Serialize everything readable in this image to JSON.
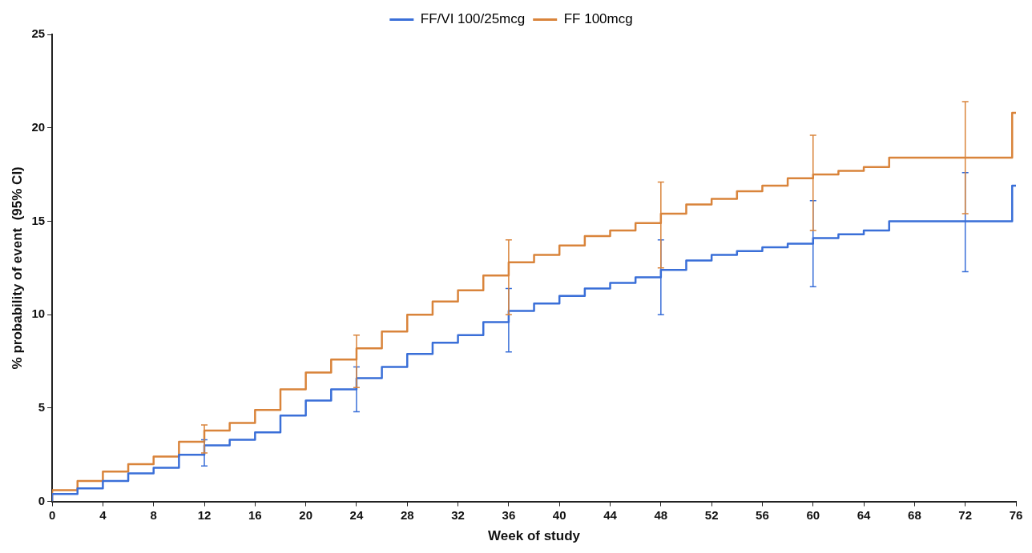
{
  "chart_data": {
    "type": "step",
    "xlabel": "Week of study",
    "ylabel": "% probability of event  (95% CI)",
    "legend": "top",
    "grid": false,
    "marker": "none",
    "xlim": [
      0,
      76
    ],
    "xticks": [
      0,
      4,
      8,
      12,
      16,
      20,
      24,
      28,
      32,
      36,
      40,
      44,
      48,
      52,
      56,
      60,
      64,
      68,
      72,
      76
    ],
    "ylim": [
      0,
      25
    ],
    "yticks": [
      0,
      5,
      10,
      15,
      20,
      25
    ],
    "series": [
      {
        "name": "FF/VI 100/25mcg",
        "color": "#3a6fd8",
        "x": [
          0,
          2,
          4,
          6,
          8,
          10,
          12,
          14,
          16,
          18,
          20,
          22,
          24,
          26,
          28,
          30,
          32,
          34,
          36,
          38,
          40,
          42,
          44,
          46,
          48,
          50,
          52,
          54,
          56,
          58,
          60,
          62,
          64,
          66,
          68,
          72,
          75.7,
          76
        ],
        "values": [
          0,
          0.4,
          0.7,
          1.1,
          1.5,
          1.8,
          2.5,
          3.0,
          3.3,
          3.7,
          4.6,
          5.4,
          6.0,
          6.6,
          7.2,
          7.9,
          8.5,
          8.9,
          9.6,
          10.2,
          10.6,
          11.0,
          11.4,
          11.7,
          12.0,
          12.4,
          12.9,
          13.2,
          13.4,
          13.6,
          13.8,
          14.1,
          14.3,
          14.5,
          15.0,
          15.0,
          15.0,
          16.9
        ],
        "errors": [
          null,
          null,
          null,
          null,
          null,
          null,
          [
            1.9,
            3.3
          ],
          null,
          null,
          null,
          null,
          null,
          [
            4.8,
            7.2
          ],
          null,
          null,
          null,
          null,
          null,
          [
            8.0,
            11.4
          ],
          null,
          null,
          null,
          null,
          null,
          [
            10.0,
            14.0
          ],
          null,
          null,
          null,
          null,
          null,
          [
            11.5,
            16.1
          ],
          null,
          null,
          null,
          null,
          [
            12.3,
            17.6
          ],
          null,
          null
        ]
      },
      {
        "name": "FF 100mcg",
        "color": "#d9843b",
        "x": [
          0,
          2,
          4,
          6,
          8,
          10,
          12,
          14,
          16,
          18,
          20,
          22,
          24,
          26,
          28,
          30,
          32,
          34,
          36,
          38,
          40,
          42,
          44,
          46,
          48,
          50,
          52,
          54,
          56,
          58,
          60,
          62,
          64,
          66,
          68,
          72,
          75.7,
          76
        ],
        "values": [
          0,
          0.6,
          1.1,
          1.6,
          2.0,
          2.4,
          3.2,
          3.8,
          4.2,
          4.9,
          6.0,
          6.9,
          7.6,
          8.2,
          9.1,
          10.0,
          10.7,
          11.3,
          12.1,
          12.8,
          13.2,
          13.7,
          14.2,
          14.5,
          14.9,
          15.4,
          15.9,
          16.2,
          16.6,
          16.9,
          17.3,
          17.5,
          17.7,
          17.9,
          18.4,
          18.4,
          18.4,
          20.8
        ],
        "errors": [
          null,
          null,
          null,
          null,
          null,
          null,
          [
            2.6,
            4.1
          ],
          null,
          null,
          null,
          null,
          null,
          [
            6.1,
            8.9
          ],
          null,
          null,
          null,
          null,
          null,
          [
            10.0,
            14.0
          ],
          null,
          null,
          null,
          null,
          null,
          [
            12.5,
            17.1
          ],
          null,
          null,
          null,
          null,
          null,
          [
            14.5,
            19.6
          ],
          null,
          null,
          null,
          null,
          [
            15.4,
            21.4
          ],
          null,
          null
        ]
      }
    ]
  }
}
